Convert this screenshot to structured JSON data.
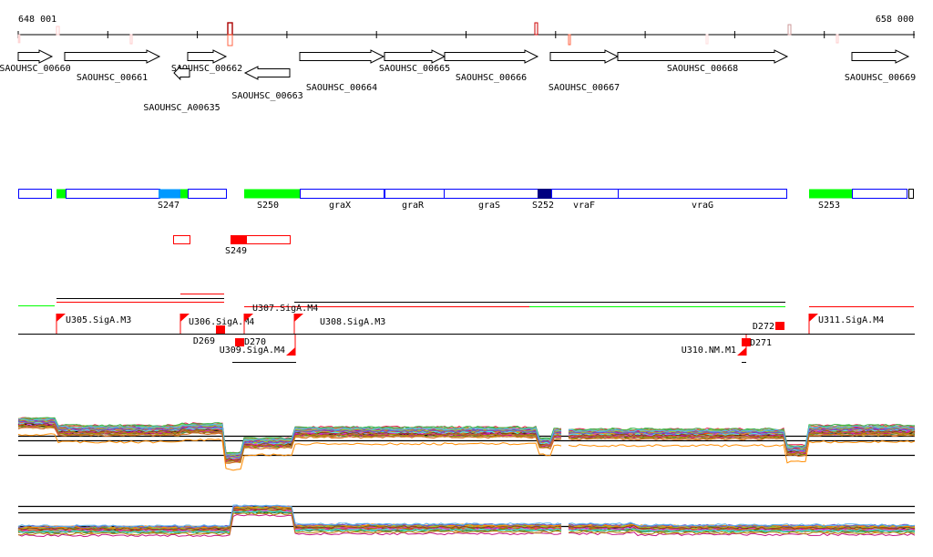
{
  "axis": {
    "start_label": "648 001",
    "end_label": "658 000"
  },
  "genes": [
    {
      "id": "SAOUHSC_00660",
      "start": 20,
      "end": 57,
      "strand": "+",
      "row": 0
    },
    {
      "id": "SAOUHSC_00661",
      "start": 71,
      "end": 175,
      "strand": "+",
      "row": 1
    },
    {
      "id": "SAOUHSC_00662",
      "start": 206,
      "end": 248,
      "strand": "+",
      "row": 0
    },
    {
      "id": "SAOUHSC_A00635",
      "start": 191,
      "end": 208,
      "strand": "-",
      "row": 4
    },
    {
      "id": "SAOUHSC_00663",
      "start": 269,
      "end": 318,
      "strand": "-",
      "row": 3
    },
    {
      "id": "SAOUHSC_00664",
      "start": 329,
      "end": 421,
      "strand": "+",
      "row": 2
    },
    {
      "id": "SAOUHSC_00665",
      "start": 422,
      "end": 488,
      "strand": "+",
      "row": 0
    },
    {
      "id": "SAOUHSC_00666",
      "start": 488,
      "end": 590,
      "strand": "+",
      "row": 1
    },
    {
      "id": "SAOUHSC_00667",
      "start": 604,
      "end": 678,
      "strand": "+",
      "row": 2
    },
    {
      "id": "SAOUHSC_00668",
      "start": 678,
      "end": 864,
      "strand": "+",
      "row": 0
    },
    {
      "id": "SAOUHSC_00669",
      "start": 935,
      "end": 997,
      "strand": "+",
      "row": 1
    }
  ],
  "segments": {
    "labels": [
      "S247",
      "S250",
      "graX",
      "graR",
      "graS",
      "S252",
      "vraF",
      "vraG",
      "S253"
    ],
    "antisense_label": "S249"
  },
  "promoters": {
    "labels": [
      "U305.SigA.M3",
      "U306.SigA.M4",
      "U307.SigA.M4",
      "U308.SigA.M3",
      "U309.SigA.M4",
      "U310.NM.M1",
      "U311.SigA.M4"
    ],
    "terminators": [
      "D269",
      "D270",
      "D271",
      "D272"
    ]
  },
  "colors": {
    "segment_border": "#0000ff",
    "expressed": "#00ff00",
    "highlight": "#0099ff",
    "dark": "#000080",
    "antisense": "#ff0000"
  }
}
